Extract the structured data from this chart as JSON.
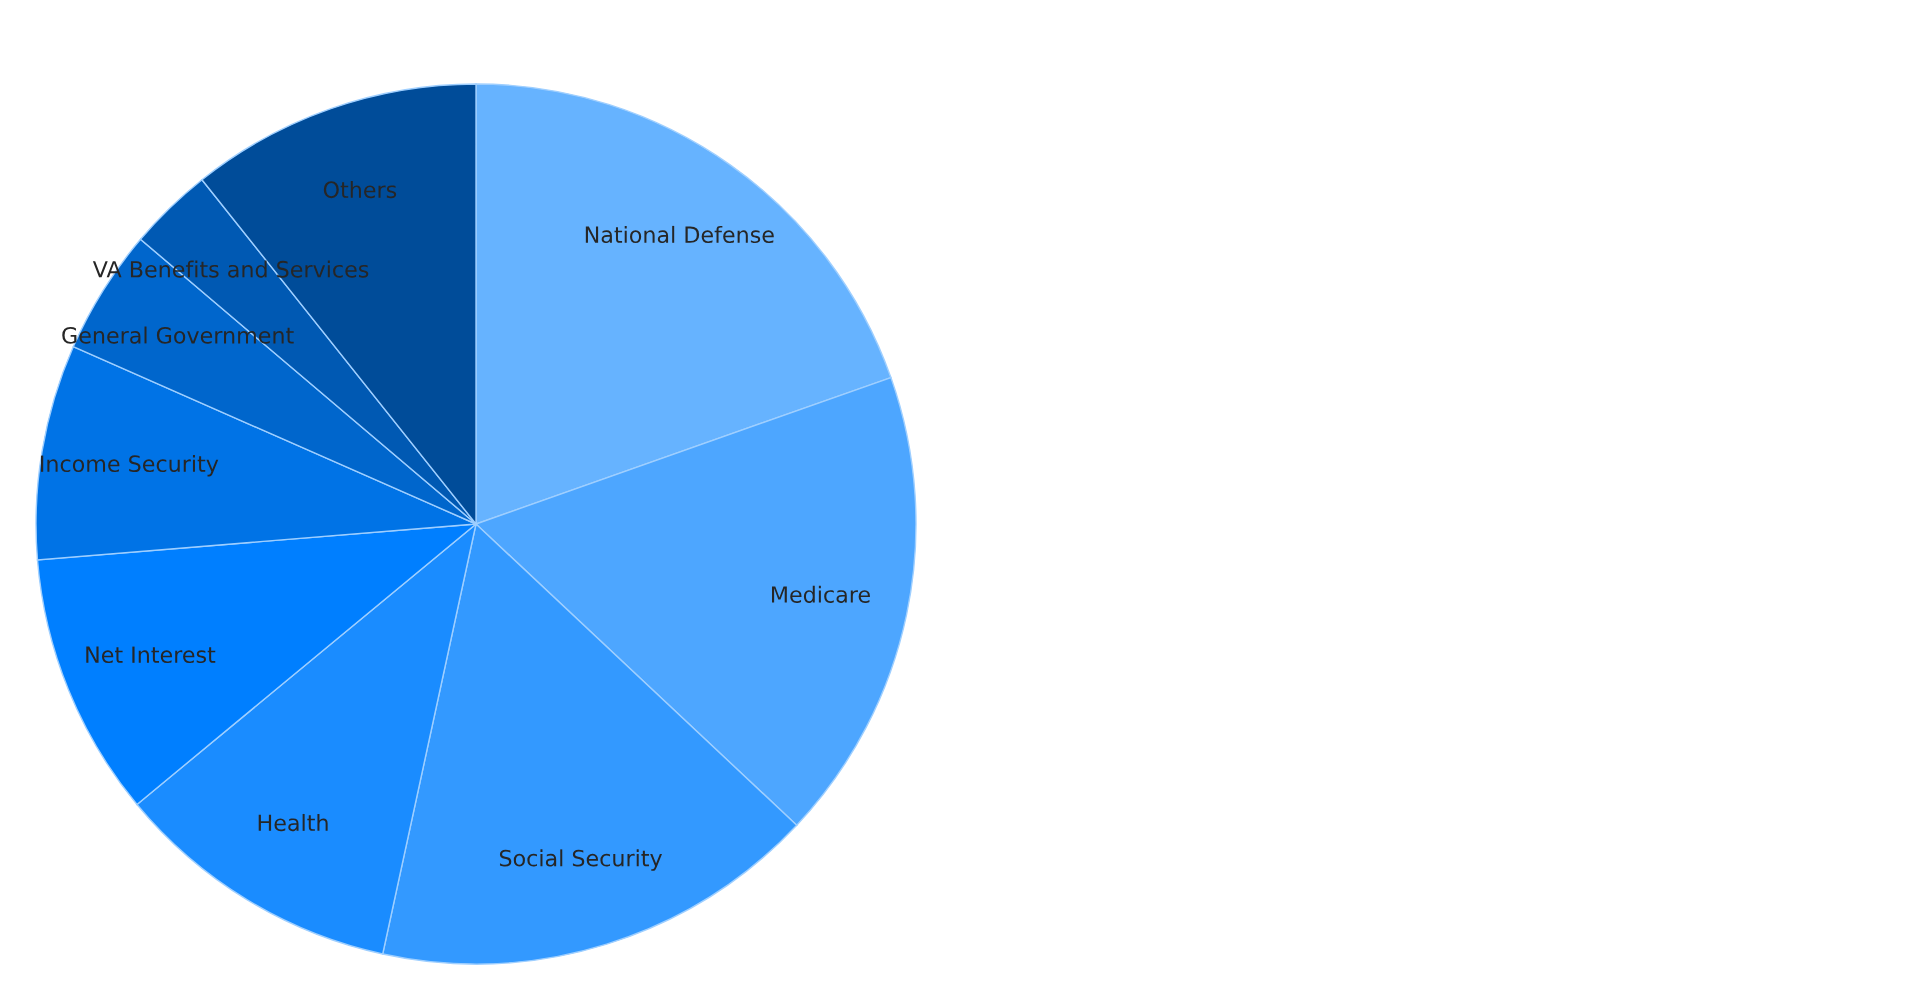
{
  "chart_data": {
    "type": "pie",
    "categories": [
      "National Defense",
      "Medicare",
      "Social Security",
      "Health",
      "Net Interest",
      "Income Security",
      "General Government",
      "VA Benefits and Services",
      "Others"
    ],
    "values": [
      19.6,
      17.4,
      16.4,
      10.6,
      9.7,
      7.9,
      4.6,
      3.1,
      10.7
    ],
    "colors": [
      "#66b3ff",
      "#4da6ff",
      "#3399ff",
      "#1a8cff",
      "#007fff",
      "#0073e6",
      "#0066cc",
      "#0059b3",
      "#004c99"
    ],
    "legend": false
  }
}
